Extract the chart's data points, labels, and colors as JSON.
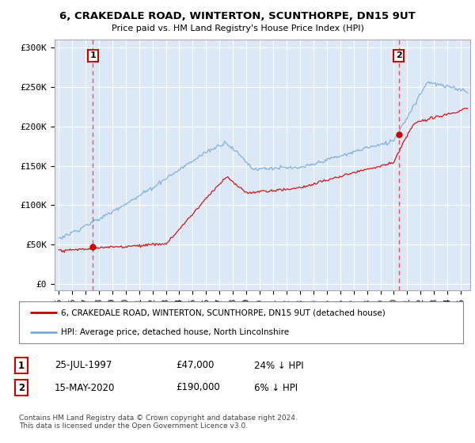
{
  "title": "6, CRAKEDALE ROAD, WINTERTON, SCUNTHORPE, DN15 9UT",
  "subtitle": "Price paid vs. HM Land Registry's House Price Index (HPI)",
  "background_color": "#ffffff",
  "plot_bg_color": "#dce8f5",
  "ylabel_ticks": [
    "£0",
    "£50K",
    "£100K",
    "£150K",
    "£200K",
    "£250K",
    "£300K"
  ],
  "ytick_values": [
    0,
    50000,
    100000,
    150000,
    200000,
    250000,
    300000
  ],
  "ylim": [
    -8000,
    310000
  ],
  "xlim_start": 1994.7,
  "xlim_end": 2025.7,
  "sale1_x": 1997.56,
  "sale1_y": 47000,
  "sale1_label": "1",
  "sale2_x": 2020.37,
  "sale2_y": 190000,
  "sale2_label": "2",
  "line1_color": "#cc0000",
  "line2_color": "#7aaadd",
  "grid_color": "#ffffff",
  "dashed_line_color": "#ee4444",
  "legend_line1": "6, CRAKEDALE ROAD, WINTERTON, SCUNTHORPE, DN15 9UT (detached house)",
  "legend_line2": "HPI: Average price, detached house, North Lincolnshire",
  "table_row1": [
    "1",
    "25-JUL-1997",
    "£47,000",
    "24% ↓ HPI"
  ],
  "table_row2": [
    "2",
    "15-MAY-2020",
    "£190,000",
    "6% ↓ HPI"
  ],
  "footer": "Contains HM Land Registry data © Crown copyright and database right 2024.\nThis data is licensed under the Open Government Licence v3.0."
}
